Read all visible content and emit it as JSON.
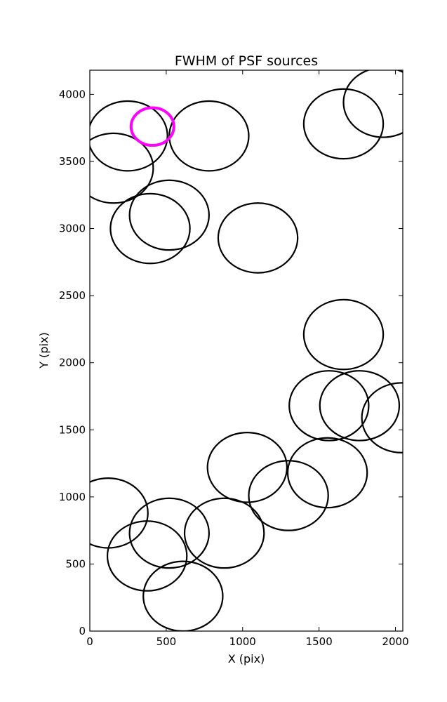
{
  "chart_data": {
    "type": "scatter",
    "title": "FWHM of PSF sources",
    "xlabel": "X (pix)",
    "ylabel": "Y (pix)",
    "xlim": [
      0,
      2048
    ],
    "ylim": [
      0,
      4180
    ],
    "xticks": [
      0,
      500,
      1000,
      1500,
      2000
    ],
    "yticks": [
      0,
      500,
      1000,
      1500,
      2000,
      2500,
      3000,
      3500,
      4000
    ],
    "grid": false,
    "legend": "none",
    "marker": "circle outline, radius = FWHM",
    "series": [
      {
        "color": "#000000",
        "points": [
          {
            "x": 248,
            "y": 3690,
            "r": 260
          },
          {
            "x": 155,
            "y": 3450,
            "r": 260
          },
          {
            "x": 520,
            "y": 3100,
            "r": 260
          },
          {
            "x": 395,
            "y": 3000,
            "r": 260
          },
          {
            "x": 780,
            "y": 3690,
            "r": 260
          },
          {
            "x": 1100,
            "y": 2930,
            "r": 260
          },
          {
            "x": 1660,
            "y": 3780,
            "r": 260
          },
          {
            "x": 1920,
            "y": 3940,
            "r": 260
          },
          {
            "x": 1660,
            "y": 2210,
            "r": 260
          },
          {
            "x": 1565,
            "y": 1680,
            "r": 260
          },
          {
            "x": 1765,
            "y": 1680,
            "r": 260
          },
          {
            "x": 2040,
            "y": 1590,
            "r": 260
          },
          {
            "x": 1555,
            "y": 1180,
            "r": 260
          },
          {
            "x": 1300,
            "y": 1010,
            "r": 260
          },
          {
            "x": 1030,
            "y": 1220,
            "r": 260
          },
          {
            "x": 880,
            "y": 730,
            "r": 260
          },
          {
            "x": 520,
            "y": 730,
            "r": 260
          },
          {
            "x": 375,
            "y": 560,
            "r": 260
          },
          {
            "x": 610,
            "y": 260,
            "r": 260
          },
          {
            "x": 120,
            "y": 880,
            "r": 260
          }
        ]
      },
      {
        "color": "#ff00ff",
        "points": [
          {
            "x": 410,
            "y": 3760,
            "r": 140
          }
        ]
      }
    ]
  }
}
